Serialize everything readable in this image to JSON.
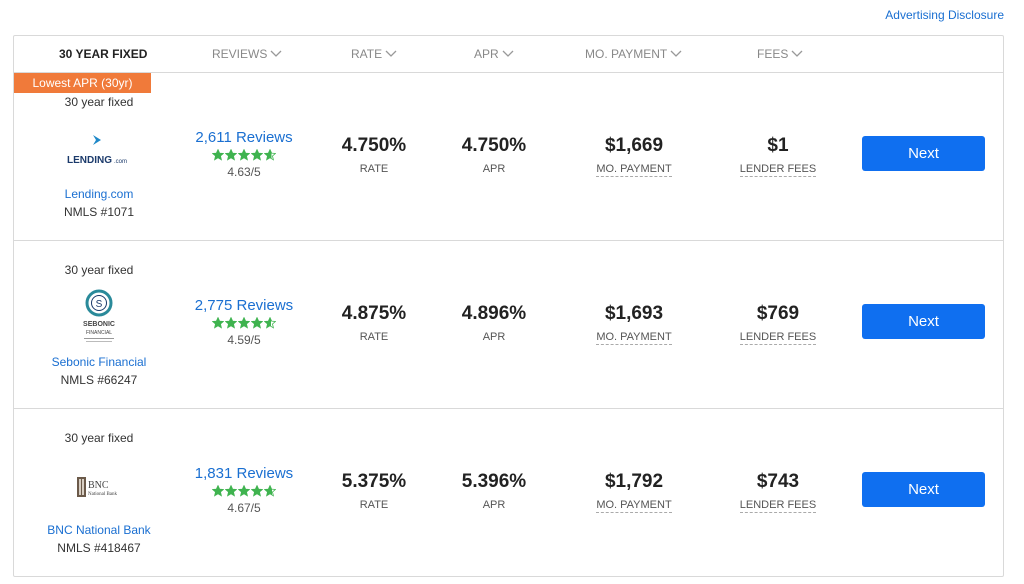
{
  "disclosure": "Advertising Disclosure",
  "header": {
    "term": "30 YEAR FIXED",
    "reviews": "REVIEWS",
    "rate": "RATE",
    "apr": "APR",
    "payment": "MO. PAYMENT",
    "fees": "FEES"
  },
  "rows": [
    {
      "badge": "Lowest APR (30yr)",
      "term": "30 year fixed",
      "lender": "Lending.com",
      "nmls": "NMLS #1071",
      "reviews": "2,611 Reviews",
      "stars": 4.63,
      "rating": "4.63/5",
      "rate": "4.750%",
      "rate_label": "RATE",
      "apr": "4.750%",
      "apr_label": "APR",
      "payment": "$1,669",
      "payment_label": "MO. PAYMENT",
      "fees": "$1",
      "fees_label": "LENDER FEES",
      "cta": "Next",
      "logo_text": "LENDING",
      "logo_suffix": ".com"
    },
    {
      "term": "30 year fixed",
      "lender": "Sebonic Financial",
      "nmls": "NMLS #66247",
      "reviews": "2,775 Reviews",
      "stars": 4.59,
      "rating": "4.59/5",
      "rate": "4.875%",
      "rate_label": "RATE",
      "apr": "4.896%",
      "apr_label": "APR",
      "payment": "$1,693",
      "payment_label": "MO. PAYMENT",
      "fees": "$769",
      "fees_label": "LENDER FEES",
      "cta": "Next",
      "logo_text": "SEBONIC",
      "logo_sub": "FINANCIAL"
    },
    {
      "term": "30 year fixed",
      "lender": "BNC National Bank",
      "nmls": "NMLS #418467",
      "reviews": "1,831 Reviews",
      "stars": 4.67,
      "rating": "4.67/5",
      "rate": "5.375%",
      "rate_label": "RATE",
      "apr": "5.396%",
      "apr_label": "APR",
      "payment": "$1,792",
      "payment_label": "MO. PAYMENT",
      "fees": "$743",
      "fees_label": "LENDER FEES",
      "cta": "Next",
      "logo_text": "BNC",
      "logo_sub": "National Bank"
    }
  ],
  "colors": {
    "accent": "#0f6ff0",
    "link": "#1a6fd1",
    "badge": "#f07a3a",
    "star": "#3fb34f"
  }
}
